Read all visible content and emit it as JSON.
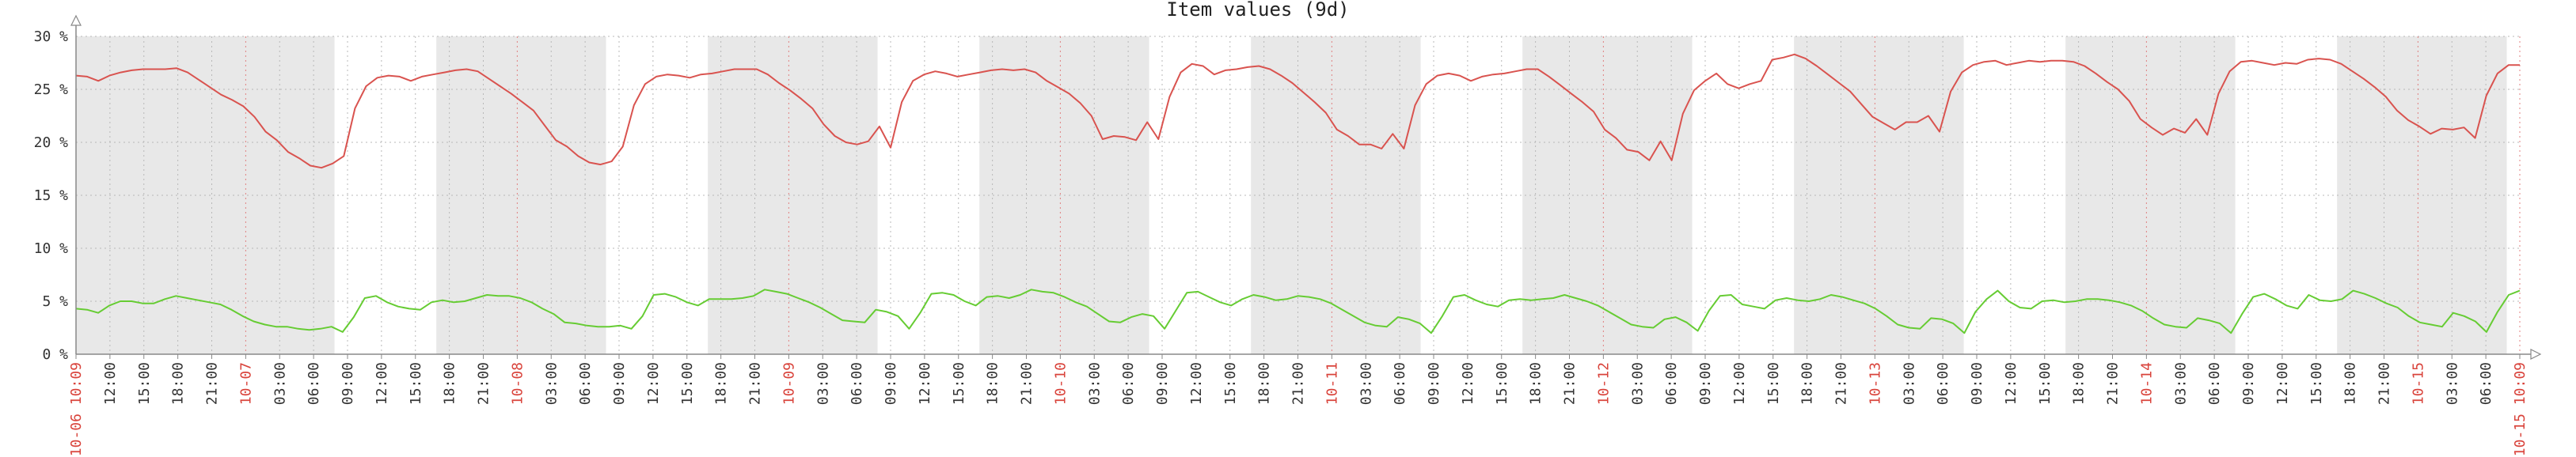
{
  "chart_data": {
    "type": "line",
    "title": "Item values (9d)",
    "y_unit": "%",
    "ylim": [
      0,
      30
    ],
    "y_ticks": [
      0,
      5,
      10,
      15,
      20,
      25,
      30
    ],
    "y_tick_labels": [
      "0 %",
      "5 %",
      "10 %",
      "15 %",
      "20 %",
      "25 %",
      "30 %"
    ],
    "x_start": "10-06 10:09",
    "x_end": "10-15 10:09",
    "x_tick_labels": [
      "10-06 10:09",
      "12:00",
      "15:00",
      "18:00",
      "21:00",
      "10-07",
      "03:00",
      "06:00",
      "09:00",
      "12:00",
      "15:00",
      "18:00",
      "21:00",
      "10-08",
      "03:00",
      "06:00",
      "09:00",
      "12:00",
      "15:00",
      "18:00",
      "21:00",
      "10-09",
      "03:00",
      "06:00",
      "09:00",
      "12:00",
      "15:00",
      "18:00",
      "21:00",
      "10-10",
      "03:00",
      "06:00",
      "09:00",
      "12:00",
      "15:00",
      "18:00",
      "21:00",
      "10-11",
      "03:00",
      "06:00",
      "09:00",
      "12:00",
      "15:00",
      "18:00",
      "21:00",
      "10-12",
      "03:00",
      "06:00",
      "09:00",
      "12:00",
      "15:00",
      "18:00",
      "21:00",
      "10-13",
      "03:00",
      "06:00",
      "09:00",
      "12:00",
      "15:00",
      "18:00",
      "21:00",
      "10-14",
      "03:00",
      "06:00",
      "09:00",
      "12:00",
      "15:00",
      "18:00",
      "21:00",
      "10-15",
      "03:00",
      "06:00",
      "10-15 10:09"
    ],
    "x_tick_red": [
      true,
      false,
      false,
      false,
      false,
      true,
      false,
      false,
      false,
      false,
      false,
      false,
      false,
      true,
      false,
      false,
      false,
      false,
      false,
      false,
      false,
      true,
      false,
      false,
      false,
      false,
      false,
      false,
      false,
      true,
      false,
      false,
      false,
      false,
      false,
      false,
      false,
      true,
      false,
      false,
      false,
      false,
      false,
      false,
      false,
      true,
      false,
      false,
      false,
      false,
      false,
      false,
      false,
      true,
      false,
      false,
      false,
      false,
      false,
      false,
      false,
      true,
      false,
      false,
      false,
      false,
      false,
      false,
      false,
      true,
      false,
      false,
      true
    ],
    "grid": true,
    "shaded_bands": "alternating 09:00-18:00 and 18:00-09:00",
    "series": [
      {
        "color": "#d9534f",
        "values": [
          26.3,
          26.2,
          25.8,
          26.3,
          26.6,
          26.8,
          26.9,
          26.9,
          26.9,
          27.0,
          26.6,
          25.9,
          25.2,
          24.5,
          24.0,
          23.4,
          22.4,
          21.0,
          20.2,
          19.1,
          18.5,
          17.8,
          17.6,
          18.0,
          18.7,
          23.2,
          25.3,
          26.1,
          26.3,
          26.2,
          25.8,
          26.2,
          26.4,
          26.6,
          26.8,
          26.9,
          26.7,
          26.0,
          25.3,
          24.6,
          23.8,
          23.0,
          21.6,
          20.2,
          19.6,
          18.7,
          18.1,
          17.9,
          18.2,
          19.6,
          23.5,
          25.5,
          26.2,
          26.4,
          26.3,
          26.1,
          26.4,
          26.5,
          26.7,
          26.9,
          26.9,
          26.9,
          26.4,
          25.6,
          24.9,
          24.1,
          23.2,
          21.7,
          20.6,
          20.0,
          19.8,
          20.1,
          21.5,
          19.5,
          23.8,
          25.8,
          26.4,
          26.7,
          26.5,
          26.2,
          26.4,
          26.6,
          26.8,
          26.9,
          26.8,
          26.9,
          26.6,
          25.8,
          25.2,
          24.6,
          23.7,
          22.5,
          20.3,
          20.6,
          20.5,
          20.2,
          21.9,
          20.3,
          24.3,
          26.6,
          27.4,
          27.2,
          26.4,
          26.8,
          26.9,
          27.1,
          27.2,
          26.9,
          26.3,
          25.6,
          24.7,
          23.8,
          22.8,
          21.2,
          20.6,
          19.8,
          19.8,
          19.4,
          20.8,
          19.4,
          23.5,
          25.5,
          26.3,
          26.5,
          26.3,
          25.8,
          26.2,
          26.4,
          26.5,
          26.7,
          26.9,
          26.9,
          26.2,
          25.4,
          24.6,
          23.8,
          22.9,
          21.2,
          20.4,
          19.3,
          19.1,
          18.3,
          20.1,
          18.3,
          22.7,
          24.9,
          25.8,
          26.5,
          25.5,
          25.1,
          25.5,
          25.8,
          27.8,
          28.0,
          28.3,
          27.9,
          27.2,
          26.4,
          25.6,
          24.8,
          23.6,
          22.4,
          21.8,
          21.2,
          21.9,
          21.9,
          22.5,
          21.0,
          24.8,
          26.6,
          27.3,
          27.6,
          27.7,
          27.3,
          27.5,
          27.7,
          27.6,
          27.7,
          27.7,
          27.6,
          27.2,
          26.5,
          25.7,
          25.0,
          23.9,
          22.2,
          21.4,
          20.7,
          21.3,
          20.9,
          22.2,
          20.7,
          24.6,
          26.7,
          27.6,
          27.7,
          27.5,
          27.3,
          27.5,
          27.4,
          27.8,
          27.9,
          27.8,
          27.4,
          26.7,
          26.0,
          25.2,
          24.3,
          23.0,
          22.1,
          21.5,
          20.8,
          21.3,
          21.2,
          21.4,
          20.4,
          24.4,
          26.5,
          27.3,
          27.3
        ]
      },
      {
        "color": "#66cc33",
        "values": [
          4.3,
          4.2,
          3.9,
          4.6,
          5.0,
          5.0,
          4.8,
          4.8,
          5.2,
          5.5,
          5.3,
          5.1,
          4.9,
          4.7,
          4.2,
          3.6,
          3.1,
          2.8,
          2.6,
          2.6,
          2.4,
          2.3,
          2.4,
          2.6,
          2.1,
          3.5,
          5.3,
          5.5,
          4.9,
          4.5,
          4.3,
          4.2,
          4.9,
          5.1,
          4.9,
          5.0,
          5.3,
          5.6,
          5.5,
          5.5,
          5.3,
          4.9,
          4.3,
          3.8,
          3.0,
          2.9,
          2.7,
          2.6,
          2.6,
          2.7,
          2.4,
          3.6,
          5.6,
          5.7,
          5.4,
          4.9,
          4.6,
          5.2,
          5.2,
          5.2,
          5.3,
          5.5,
          6.1,
          5.9,
          5.7,
          5.3,
          4.9,
          4.4,
          3.8,
          3.2,
          3.1,
          3.0,
          4.2,
          4.0,
          3.6,
          2.4,
          3.9,
          5.7,
          5.8,
          5.6,
          5.0,
          4.6,
          5.4,
          5.5,
          5.3,
          5.6,
          6.1,
          5.9,
          5.8,
          5.4,
          4.9,
          4.5,
          3.8,
          3.1,
          3.0,
          3.5,
          3.8,
          3.6,
          2.4,
          4.1,
          5.8,
          5.9,
          5.4,
          4.9,
          4.6,
          5.2,
          5.6,
          5.4,
          5.1,
          5.2,
          5.5,
          5.4,
          5.2,
          4.8,
          4.2,
          3.6,
          3.0,
          2.7,
          2.6,
          3.5,
          3.3,
          2.9,
          2.0,
          3.6,
          5.4,
          5.6,
          5.1,
          4.7,
          4.5,
          5.1,
          5.2,
          5.1,
          5.2,
          5.3,
          5.6,
          5.3,
          5.0,
          4.6,
          4.0,
          3.4,
          2.8,
          2.6,
          2.5,
          3.3,
          3.5,
          3.0,
          2.2,
          4.1,
          5.5,
          5.6,
          4.7,
          4.5,
          4.3,
          5.1,
          5.3,
          5.1,
          5.0,
          5.2,
          5.6,
          5.4,
          5.1,
          4.8,
          4.3,
          3.6,
          2.8,
          2.5,
          2.4,
          3.4,
          3.3,
          2.9,
          2.0,
          4.0,
          5.2,
          6.0,
          5.0,
          4.4,
          4.3,
          5.0,
          5.1,
          4.9,
          5.0,
          5.2,
          5.2,
          5.1,
          4.9,
          4.6,
          4.1,
          3.4,
          2.8,
          2.6,
          2.5,
          3.4,
          3.2,
          2.9,
          2.0,
          3.8,
          5.4,
          5.7,
          5.2,
          4.6,
          4.3,
          5.6,
          5.1,
          5.0,
          5.2,
          6.0,
          5.7,
          5.3,
          4.8,
          4.4,
          3.6,
          3.0,
          2.8,
          2.6,
          3.9,
          3.6,
          3.1,
          2.1,
          4.0,
          5.6,
          6.0
        ]
      }
    ]
  }
}
